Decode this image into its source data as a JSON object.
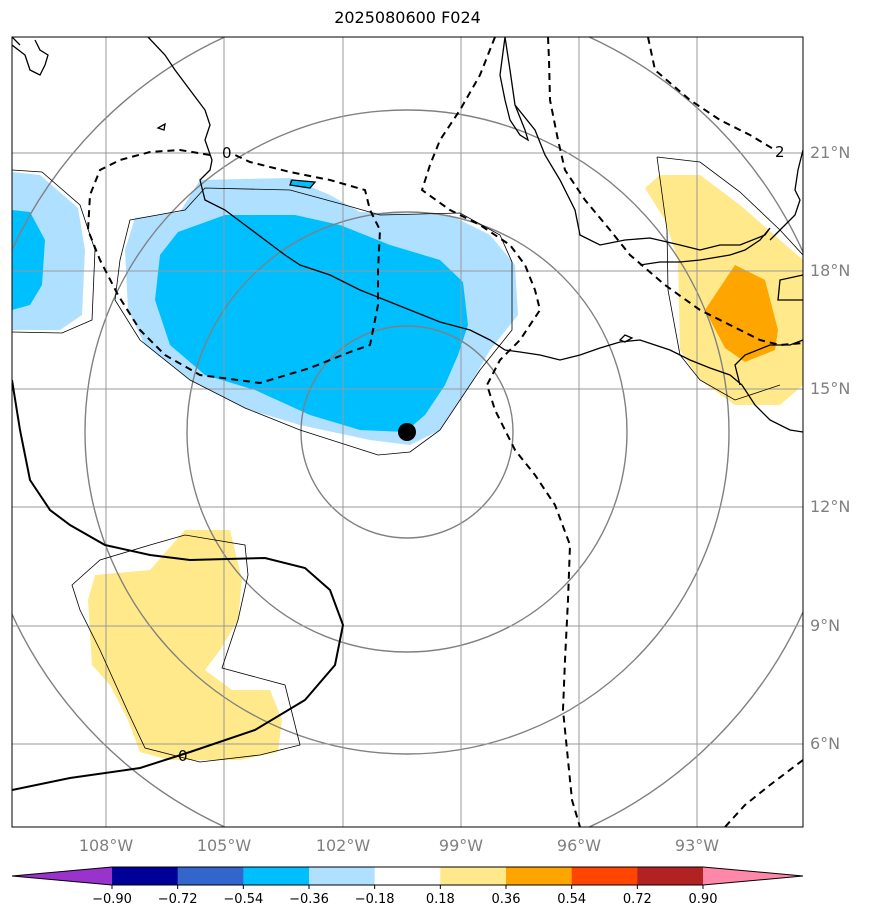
{
  "title": "2025080600 F024",
  "lon_ticks": [
    "108°W",
    "105°W",
    "102°W",
    "99°W",
    "96°W",
    "93°W"
  ],
  "lat_ticks": [
    "21°N",
    "18°N",
    "15°N",
    "12°N",
    "9°N",
    "6°N"
  ],
  "colorbar": {
    "ticks": [
      "−0.90",
      "−0.72",
      "−0.54",
      "−0.36",
      "−0.18",
      "0.18",
      "0.36",
      "0.54",
      "0.72",
      "0.90"
    ],
    "colors": [
      "#9933cc",
      "#000099",
      "#3366cc",
      "#00bfff",
      "#b0e0ff",
      "#ffffff",
      "#ffe98a",
      "#ffa500",
      "#ff4500",
      "#b22222",
      "#ff88aa"
    ]
  },
  "contour_labels": [
    "0",
    "0",
    "2"
  ],
  "storm_marker": {
    "lon": "100.3°W",
    "lat": "13.8°N"
  }
}
